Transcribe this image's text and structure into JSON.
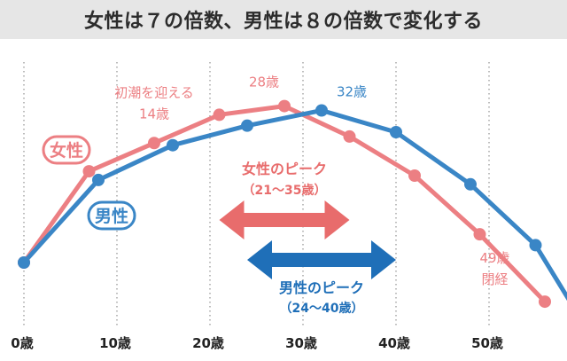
{
  "title": "女性は７の倍数、男性は８の倍数で変化する",
  "colors": {
    "female": "#ec7f83",
    "male": "#3a86c6",
    "female_arrow": "#e86c6c",
    "male_arrow": "#1f6fb8",
    "grid": "#999999",
    "title_bg": "#e6e6e6",
    "text_dark": "#222222"
  },
  "chart_data": {
    "type": "line",
    "title": "女性は７の倍数、男性は８の倍数で変化する",
    "xlabel": "",
    "ylabel": "",
    "x_ticks": [
      "0歳",
      "10歳",
      "20歳",
      "30歳",
      "40歳",
      "50歳"
    ],
    "x_tick_values": [
      0,
      10,
      20,
      30,
      40,
      50
    ],
    "xlim": [
      -2,
      57
    ],
    "ylim": [
      0,
      100
    ],
    "grid": "vertical dotted",
    "series": [
      {
        "name": "女性",
        "color": "#ec7f83",
        "points": [
          [
            0,
            20
          ],
          [
            7,
            62
          ],
          [
            14,
            75
          ],
          [
            21,
            88
          ],
          [
            28,
            92
          ],
          [
            35,
            78
          ],
          [
            42,
            60
          ],
          [
            49,
            33
          ],
          [
            56,
            2
          ]
        ],
        "line_end": [
          56,
          2
        ]
      },
      {
        "name": "男性",
        "color": "#3a86c6",
        "points": [
          [
            0,
            20
          ],
          [
            8,
            58
          ],
          [
            16,
            74
          ],
          [
            24,
            83
          ],
          [
            32,
            90
          ],
          [
            40,
            80
          ],
          [
            48,
            56
          ],
          [
            55,
            28
          ]
        ],
        "line_end": [
          59,
          0
        ]
      }
    ],
    "annotations": [
      {
        "text": "初潮を迎える",
        "series": "女性",
        "x": 14
      },
      {
        "text": "14歳",
        "series": "女性",
        "x": 14
      },
      {
        "text": "28歳",
        "series": "女性",
        "x": 28
      },
      {
        "text": "32歳",
        "series": "男性",
        "x": 32
      },
      {
        "text": "49歳",
        "series": "女性",
        "x": 49
      },
      {
        "text": "閉経",
        "series": "女性",
        "x": 49
      }
    ],
    "ranges": [
      {
        "label": "女性のピーク",
        "sublabel": "（21〜35歳）",
        "from": 21,
        "to": 35,
        "series": "女性"
      },
      {
        "label": "男性のピーク",
        "sublabel": "（24〜40歳）",
        "from": 24,
        "to": 40,
        "series": "男性"
      }
    ],
    "legend": [
      {
        "label": "女性",
        "series": "女性"
      },
      {
        "label": "男性",
        "series": "男性"
      }
    ]
  }
}
